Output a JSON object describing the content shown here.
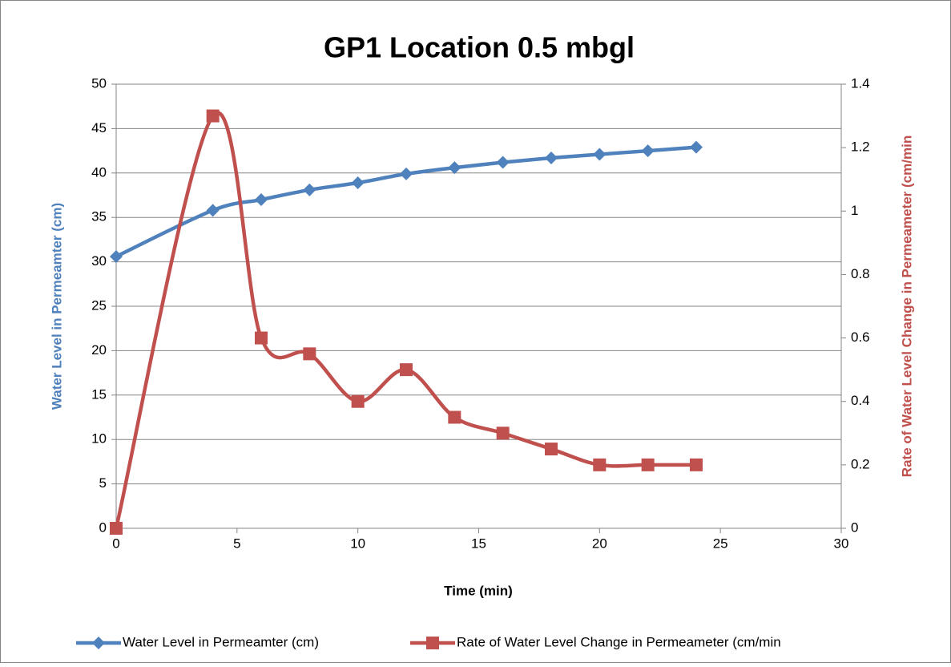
{
  "chart_data": {
    "type": "line",
    "title": "GP1 Location 0.5 mbgl",
    "xlabel": "Time (min)",
    "ylabel": "Water Level in Permeamter (cm)",
    "y2label": "Rate of Water Level Change in Permeameter (cm/min",
    "x": [
      0,
      4,
      6,
      8,
      10,
      12,
      14,
      16,
      18,
      20,
      22,
      24
    ],
    "series": [
      {
        "name": "Water Level in Permeamter (cm)",
        "color": "#4f81bd",
        "marker": "diamond",
        "axis": "y",
        "values": [
          30.6,
          35.8,
          37.0,
          38.1,
          38.9,
          39.9,
          40.6,
          41.2,
          41.7,
          42.1,
          42.5,
          42.9
        ]
      },
      {
        "name": "Rate of Water Level Change in Permeameter (cm/min",
        "color": "#c0504d",
        "marker": "square",
        "axis": "y2",
        "values": [
          0,
          1.3,
          0.6,
          0.55,
          0.4,
          0.5,
          0.35,
          0.3,
          0.25,
          0.2,
          0.2,
          0.2
        ]
      }
    ],
    "xlim": [
      0,
      30
    ],
    "xticks": [
      0,
      5,
      10,
      15,
      20,
      25,
      30
    ],
    "ylim": [
      0,
      50
    ],
    "yticks": [
      0,
      5,
      10,
      15,
      20,
      25,
      30,
      35,
      40,
      45,
      50
    ],
    "y2lim": [
      0,
      1.4
    ],
    "y2ticks": [
      0,
      0.2,
      0.4,
      0.6,
      0.8,
      1,
      1.2,
      1.4
    ],
    "smooth": true,
    "grid": true,
    "legend": "bottom"
  }
}
